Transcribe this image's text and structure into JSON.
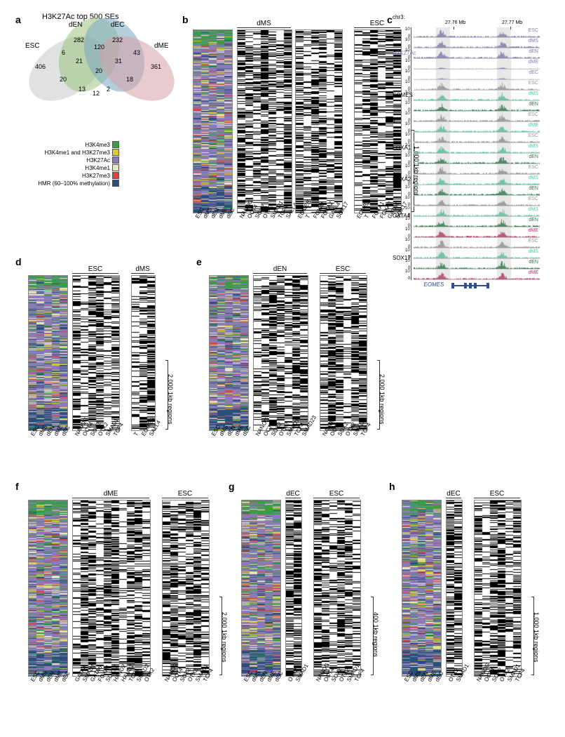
{
  "colors": {
    "h3k4me3": "#3a9b4a",
    "bivalent": "#d8c937",
    "h3k27ac": "#8b7bb5",
    "h3k4me1": "#e8e8c0",
    "h3k27me3": "#d64545",
    "hmr": "#2a4f7a",
    "venn_esc": "#c8c8c8",
    "venn_den": "#9bc47f",
    "venn_dec": "#7aa8c4",
    "venn_dme": "#d4a0a8",
    "track_purple": "#8b7bb5",
    "track_gray": "#999999",
    "track_green_light": "#5bc9a0",
    "track_green_dark": "#2a7a4a",
    "track_magenta": "#b83a6a"
  },
  "panel_a": {
    "title": "H3K27Ac top 500 SEs",
    "sets": {
      "esc": "ESC",
      "den": "dEN",
      "dec": "dEC",
      "dme": "dME"
    },
    "values": {
      "esc_only": 406,
      "den_only": 282,
      "dec_only": 232,
      "dme_only": 361,
      "esc_den": 6,
      "den_dec": 120,
      "dec_dme": 43,
      "esc_den_dec": 21,
      "den_dec_dme": 31,
      "center": 20,
      "esc_dme": 20,
      "esc_dec": 13,
      "esc_den_dme": 12,
      "esc_dec_dme": 2,
      "den_dme": 18
    }
  },
  "legend": [
    {
      "label": "H3K4me3",
      "color": "h3k4me3"
    },
    {
      "label": "H3K4me1 and H3K27me3",
      "color": "bivalent"
    },
    {
      "label": "H3K27Ac",
      "color": "h3k27ac"
    },
    {
      "label": "H3K4me1",
      "color": "h3k4me1"
    },
    {
      "label": "H3K27me3",
      "color": "h3k27me3"
    },
    {
      "label": "HMR (60–100% methylation)",
      "color": "hmr"
    }
  ],
  "panel_b": {
    "pref_cols": [
      "ESC",
      "dMS",
      "dEN",
      "dME",
      "dEC"
    ],
    "group1": {
      "name": "dMS",
      "cols": [
        "NANOG",
        "OCT4",
        "SOX2",
        "OTX2",
        "SMAD1",
        "TCF4",
        "SALL4"
      ]
    },
    "group2": {
      "name": "",
      "cols": [
        "EOMES",
        "T",
        "FOXA1",
        "FOXA2",
        "GATA4",
        "SOX17"
      ]
    },
    "group3": {
      "name": "ESC",
      "cols": [
        "EOMES",
        "T",
        "FOXA1",
        "FOXA2",
        "GATA4",
        "SOX17"
      ]
    },
    "scale": "1,000 1kb regions"
  },
  "panel_c": {
    "chr": "chr3:",
    "ticks": [
      "27.76 Mb",
      "27.77 Mb"
    ],
    "groups": [
      {
        "name": "H3K27Ac",
        "color": "track_purple",
        "rows": [
          {
            "cond": "ESC",
            "y": 10
          },
          {
            "cond": "dMS",
            "y": 10
          },
          {
            "cond": "dEN",
            "y": 10
          },
          {
            "cond": "dME",
            "y": 10
          },
          {
            "cond": "dEC",
            "y": 10
          }
        ]
      },
      {
        "name": "EOMES",
        "rows": [
          {
            "cond": "ESC",
            "y": 10,
            "color": "track_gray"
          },
          {
            "cond": "dMS",
            "y": 10,
            "color": "track_green_light"
          },
          {
            "cond": "dEN",
            "y": 10,
            "color": "track_green_dark"
          }
        ]
      },
      {
        "name": "T",
        "rows": [
          {
            "cond": "ESC",
            "y": 10,
            "color": "track_gray"
          },
          {
            "cond": "dME",
            "y": 10,
            "color": "track_green_light"
          }
        ]
      },
      {
        "name": "FOXA1",
        "rows": [
          {
            "cond": "ESC",
            "y": 10,
            "color": "track_gray"
          },
          {
            "cond": "dMS",
            "y": 10,
            "color": "track_green_light"
          },
          {
            "cond": "dEN",
            "y": 10,
            "color": "track_green_dark"
          }
        ]
      },
      {
        "name": "FOXA2",
        "rows": [
          {
            "cond": "ESC",
            "y": 10,
            "color": "track_gray"
          },
          {
            "cond": "dMS",
            "y": 10,
            "color": "track_green_light"
          },
          {
            "cond": "dEN",
            "y": 10,
            "color": "track_green_dark"
          }
        ]
      },
      {
        "name": "GATA4",
        "rows": [
          {
            "cond": "ESC",
            "y": 10,
            "color": "track_gray"
          },
          {
            "cond": "dMS",
            "y": 10,
            "color": "track_green_light"
          },
          {
            "cond": "dEN",
            "y": 10,
            "color": "track_green_dark"
          },
          {
            "cond": "dME",
            "y": 10,
            "color": "track_magenta"
          }
        ]
      },
      {
        "name": "SOX17",
        "rows": [
          {
            "cond": "ESC",
            "y": 10,
            "color": "track_gray"
          },
          {
            "cond": "dMS",
            "y": 10,
            "color": "track_green_light"
          },
          {
            "cond": "dEN",
            "y": 10,
            "color": "track_green_dark"
          },
          {
            "cond": "dME",
            "y": 10,
            "color": "track_magenta"
          }
        ]
      }
    ],
    "gene": "EOMES"
  },
  "panel_d": {
    "pref_cols": [
      "ESC",
      "dMS",
      "dEN",
      "dME",
      "dEC"
    ],
    "group1": {
      "name": "ESC",
      "cols": [
        "NANOG",
        "OCT4",
        "SOX2",
        "OTX2",
        "SMAD1",
        "TCF4"
      ]
    },
    "group2": {
      "name": "dMS",
      "cols": [
        "T",
        "EOMES",
        "SALL4"
      ]
    },
    "scale": "2,000 1kb regions"
  },
  "panel_e": {
    "pref_cols": [
      "ESC",
      "dMS",
      "dEN",
      "dME",
      "dEC"
    ],
    "group1": {
      "name": "dEN",
      "cols": [
        "NANOG",
        "OCT4",
        "SOX2",
        "OTX2",
        "SMAD1",
        "TCF4",
        "SMAD23"
      ]
    },
    "group2": {
      "name": "ESC",
      "cols": [
        "NANOG",
        "OCT4",
        "SOX2",
        "OTX2",
        "SMAD1",
        "TCF4"
      ]
    },
    "scale": "2,000 1kb regions"
  },
  "panel_f": {
    "pref_cols": [
      "ESC",
      "dMS",
      "dEN",
      "dME",
      "dEC"
    ],
    "group1": {
      "name": "dME",
      "cols": [
        "GATA4",
        "SMAD1",
        "GATA6",
        "FOXA1",
        "SOX17",
        "HAND2",
        "HAND1",
        "TCF4",
        "SMAD2",
        "OTX2"
      ]
    },
    "group2": {
      "name": "ESC",
      "cols": [
        "NANOG",
        "OCT4",
        "SOX2",
        "OTX2",
        "SMAD1",
        "TCF4"
      ]
    },
    "scale": "2,000 1kb regions"
  },
  "panel_g": {
    "pref_cols": [
      "ESC",
      "dMS",
      "dEN",
      "dME",
      "dEC"
    ],
    "group1": {
      "name": "dEC",
      "cols": [
        "OTX2",
        "SMAD1"
      ]
    },
    "group2": {
      "name": "ESC",
      "cols": [
        "NANOG",
        "OCT4",
        "SOX2",
        "OTX2",
        "SMAD1",
        "TCF4"
      ]
    },
    "scale": "400 1kb regions"
  },
  "panel_h": {
    "pref_cols": [
      "ESC",
      "dMS",
      "dEN",
      "dME",
      "dEC"
    ],
    "group1": {
      "name": "dEC",
      "cols": [
        "OTX2",
        "SMAD1"
      ]
    },
    "group2": {
      "name": "ESC",
      "cols": [
        "NANOG",
        "OCT4",
        "SOX2",
        "OTX2",
        "SMAD1",
        "TCF4"
      ]
    },
    "scale": "1,000 1kb regions"
  }
}
